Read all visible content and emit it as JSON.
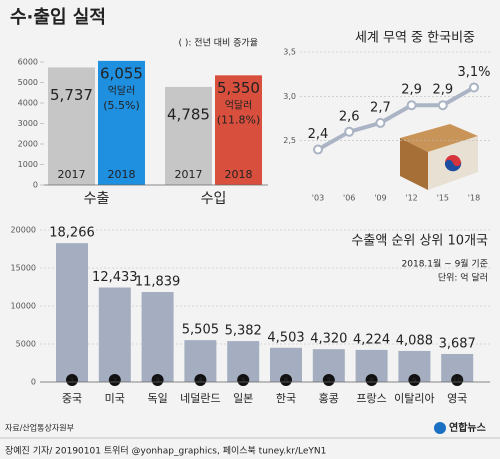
{
  "source": "자료/산업통상자원부",
  "credit": "장예진 기자/ 20190101 트위터 @yonhap_graphics, 페이스북 tuney.kr/LeYN1",
  "logo": "연합뉴스",
  "chart_data": [
    {
      "type": "bar",
      "title": "수·출입 실적",
      "note": "( ): 전년 대비 증가율",
      "unit": "억달러",
      "categories": [
        "수출",
        "수입"
      ],
      "series": [
        {
          "name": "2017",
          "color": "#c6c6c6",
          "values": [
            5737,
            4785
          ],
          "value_labels": [
            "5,737",
            "4,785"
          ]
        },
        {
          "name": "2018",
          "colors": [
            "#1f8fe0",
            "#d94f3d"
          ],
          "values": [
            6055,
            5350
          ],
          "value_labels": [
            "6,055",
            "5,350"
          ],
          "growth": [
            5.5,
            11.8
          ],
          "growth_labels": [
            "(5.5%)",
            "(11.8%)"
          ]
        }
      ],
      "ylim": [
        0,
        6000
      ],
      "yticks": [
        0,
        1000,
        2000,
        3000,
        4000,
        5000,
        6000
      ]
    },
    {
      "type": "line",
      "title": "세계 무역 중 한국비중",
      "categories": [
        "'03",
        "'06",
        "'09",
        "'12",
        "'15",
        "'18"
      ],
      "values": [
        2.4,
        2.6,
        2.7,
        2.9,
        2.9,
        3.1
      ],
      "value_labels": [
        "2,4",
        "2,6",
        "2,7",
        "2,9",
        "2,9",
        "3,1%"
      ],
      "color": "#aab4c4",
      "ylim": [
        2.0,
        3.5
      ],
      "yticks": [
        {
          "value": 2.5,
          "label": "2,5"
        },
        {
          "value": 3.0,
          "label": "3,0"
        },
        {
          "value": 3.5,
          "label": "3,5"
        }
      ],
      "grid": true
    },
    {
      "type": "bar",
      "title": "수출액 순위 상위 10개국",
      "subtitle": "2018.1월 ~ 9월 기준",
      "unit": "단위: 억 달러",
      "categories": [
        "중국",
        "미국",
        "독일",
        "네덜란드",
        "일본",
        "한국",
        "홍콩",
        "프랑스",
        "이탈리아",
        "영국"
      ],
      "ranks": [
        1,
        2,
        3,
        4,
        5,
        6,
        7,
        8,
        9,
        10
      ],
      "values": [
        18266,
        12433,
        11839,
        5505,
        5382,
        4503,
        4320,
        4224,
        4088,
        3687
      ],
      "value_labels": [
        "18,266",
        "12,433",
        "11,839",
        "5,505",
        "5,382",
        "4,503",
        "4,320",
        "4,224",
        "4,088",
        "3,687"
      ],
      "color": "#a4aec0",
      "ylim": [
        0,
        20000
      ],
      "yticks": [
        0,
        5000,
        10000,
        15000,
        20000
      ],
      "grid": true
    }
  ]
}
